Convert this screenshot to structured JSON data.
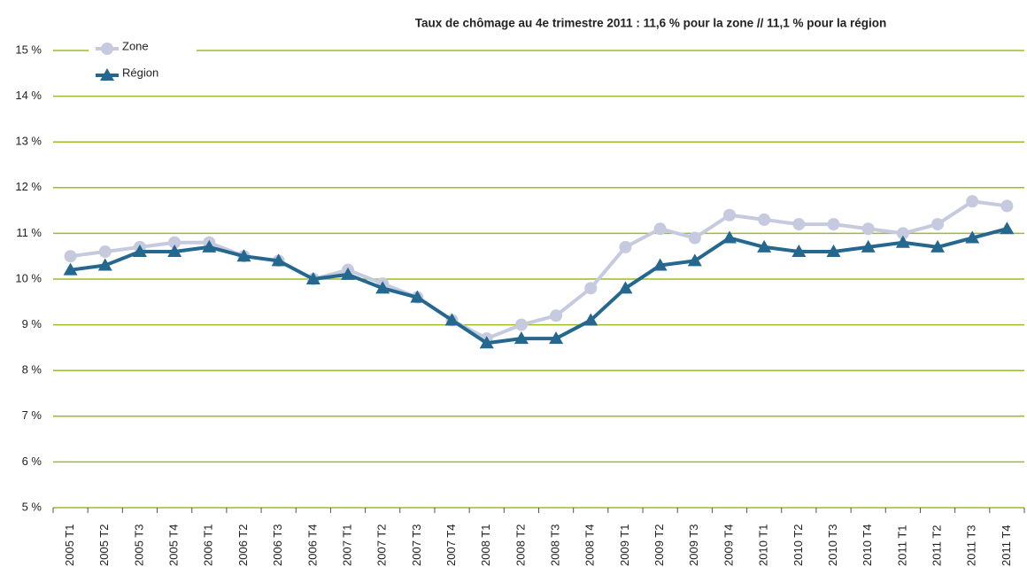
{
  "chart_data": {
    "type": "line",
    "title": "Taux de chômage au 4e trimestre 2011 :  11,6 % pour la zone // 11,1 % pour la région",
    "categories": [
      "2005 T1",
      "2005 T2",
      "2005 T3",
      "2005 T4",
      "2006 T1",
      "2006 T2",
      "2006 T3",
      "2006 T4",
      "2007 T1",
      "2007 T2",
      "2007 T3",
      "2007 T4",
      "2008 T1",
      "2008 T2",
      "2008 T3",
      "2008 T4",
      "2009 T1",
      "2009 T2",
      "2009 T3",
      "2009 T4",
      "2010 T1",
      "2010 T2",
      "2010 T3",
      "2010 T4",
      "2011 T1",
      "2011 T2",
      "2011 T3",
      "2011 T4"
    ],
    "series": [
      {
        "name": "Zone",
        "color": "#c5cadf",
        "marker": "circle",
        "values": [
          10.5,
          10.6,
          10.7,
          10.8,
          10.8,
          10.5,
          10.4,
          10.0,
          10.2,
          9.9,
          9.6,
          9.1,
          8.7,
          9.0,
          9.2,
          9.8,
          10.7,
          11.1,
          10.9,
          11.4,
          11.3,
          11.2,
          11.2,
          11.1,
          11.0,
          11.2,
          11.7,
          11.6
        ]
      },
      {
        "name": "Région",
        "color": "#24678f",
        "marker": "triangle",
        "values": [
          10.2,
          10.3,
          10.6,
          10.6,
          10.7,
          10.5,
          10.4,
          10.0,
          10.1,
          9.8,
          9.6,
          9.1,
          8.6,
          8.7,
          8.7,
          9.1,
          9.8,
          10.3,
          10.4,
          10.9,
          10.7,
          10.6,
          10.6,
          10.7,
          10.8,
          10.7,
          10.9,
          11.1
        ]
      }
    ],
    "ylim": [
      5,
      15
    ],
    "yticks": [
      {
        "value": 5,
        "label": "5 %"
      },
      {
        "value": 6,
        "label": "6 %"
      },
      {
        "value": 7,
        "label": "7 %"
      },
      {
        "value": 8,
        "label": "8 %"
      },
      {
        "value": 9,
        "label": "9 %"
      },
      {
        "value": 10,
        "label": "10 %"
      },
      {
        "value": 11,
        "label": "11 %"
      },
      {
        "value": 12,
        "label": "12 %"
      },
      {
        "value": 13,
        "label": "13 %"
      },
      {
        "value": 14,
        "label": "14 %"
      },
      {
        "value": 15,
        "label": "15 %"
      }
    ],
    "grid": true,
    "grid_color": "#9dbb2a",
    "legend": "top-left"
  }
}
